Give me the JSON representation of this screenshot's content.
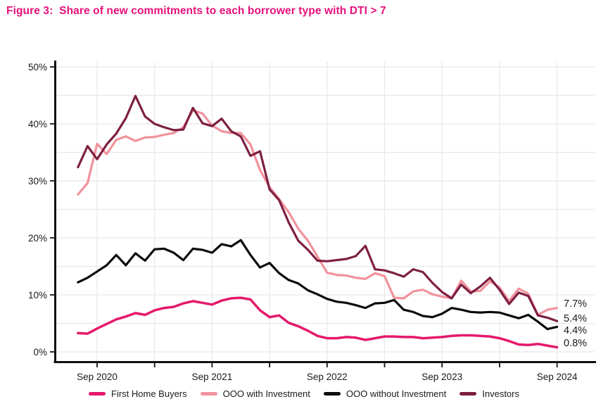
{
  "title": "Figure 3:  Share of new commitments to each borrower type with DTI > 7",
  "title_color": "#E5117C",
  "chart_data": {
    "type": "line",
    "frequency": "monthly",
    "x_start": "2020-07",
    "x_end": "2024-09",
    "x_tick_labels": [
      "Sep 2020",
      "Sep 2021",
      "Sep 2022",
      "Sep 2023",
      "Sep 2024"
    ],
    "x_major_tick_month_indices": [
      2,
      14,
      26,
      38,
      50
    ],
    "x_minor_tick_month_indices": [
      8,
      20,
      32,
      44
    ],
    "ylim": [
      0,
      50
    ],
    "y_tick_labels": [
      "0%",
      "10%",
      "20%",
      "30%",
      "40%",
      "50%"
    ],
    "y_tick_values": [
      0,
      10,
      20,
      30,
      40,
      50
    ],
    "y_grid_step": 5,
    "grid": "on",
    "legend_position": "bottom",
    "series": [
      {
        "name": "First Home Buyers",
        "color": "#E5186C",
        "end_label": "0.8%",
        "label_dy": -1.5,
        "values": [
          3.3,
          3.2,
          4.1,
          4.9,
          5.7,
          6.2,
          6.8,
          6.5,
          7.3,
          7.7,
          7.9,
          8.5,
          8.9,
          8.6,
          8.3,
          9.0,
          9.4,
          9.5,
          9.2,
          7.3,
          6.1,
          6.4,
          5.1,
          4.5,
          3.7,
          2.8,
          2.4,
          2.4,
          2.6,
          2.5,
          2.1,
          2.4,
          2.7,
          2.7,
          2.6,
          2.6,
          2.4,
          2.5,
          2.6,
          2.8,
          2.9,
          2.9,
          2.8,
          2.7,
          2.4,
          1.9,
          1.3,
          1.2,
          1.4,
          1.1,
          0.8
        ]
      },
      {
        "name": "OOO with Investment",
        "color": "#F2929C",
        "end_label": "7.7%",
        "label_dy": -1.6,
        "values": [
          27.6,
          29.6,
          36.5,
          34.7,
          37.2,
          37.8,
          37.0,
          37.6,
          37.7,
          38.1,
          38.4,
          39.4,
          42.4,
          41.8,
          39.7,
          38.7,
          38.4,
          38.4,
          36.4,
          31.9,
          28.9,
          26.8,
          24.5,
          21.6,
          19.5,
          16.7,
          13.9,
          13.5,
          13.4,
          13.0,
          12.8,
          13.8,
          13.3,
          9.5,
          9.4,
          10.6,
          10.9,
          10.1,
          9.7,
          9.4,
          12.5,
          10.6,
          10.7,
          12.4,
          11.3,
          8.9,
          11.1,
          10.2,
          6.5,
          7.4,
          7.7
        ]
      },
      {
        "name": "OOO without Investment",
        "color": "#0b0b0b",
        "end_label": "4.4%",
        "label_dy": 9.6,
        "values": [
          12.2,
          13.0,
          14.1,
          15.2,
          17.0,
          15.2,
          17.3,
          16.0,
          18.0,
          18.1,
          17.4,
          16.1,
          18.1,
          17.9,
          17.4,
          18.9,
          18.5,
          19.6,
          17.0,
          14.8,
          15.6,
          13.8,
          12.6,
          12.0,
          10.8,
          10.1,
          9.3,
          8.8,
          8.6,
          8.2,
          7.7,
          8.5,
          8.6,
          9.1,
          7.4,
          7.0,
          6.3,
          6.1,
          6.7,
          7.7,
          7.4,
          7.0,
          6.9,
          7.0,
          6.9,
          6.4,
          5.9,
          6.5,
          5.3,
          4.0,
          4.4
        ]
      },
      {
        "name": "Investors",
        "color": "#7D1F42",
        "end_label": "5.4%",
        "label_dy": 0.7,
        "values": [
          32.4,
          36.1,
          33.8,
          36.4,
          38.3,
          41.0,
          44.9,
          41.3,
          40.0,
          39.4,
          38.9,
          39.0,
          42.8,
          40.1,
          39.6,
          40.9,
          38.7,
          37.8,
          34.4,
          35.2,
          28.5,
          26.6,
          22.7,
          19.5,
          17.9,
          16.0,
          15.9,
          16.1,
          16.3,
          16.8,
          18.6,
          14.5,
          14.3,
          13.8,
          13.2,
          14.5,
          14.0,
          12.1,
          10.5,
          9.4,
          11.8,
          10.3,
          11.5,
          13.0,
          10.9,
          8.4,
          10.4,
          9.8,
          6.4,
          6.0,
          5.4
        ]
      }
    ]
  },
  "legend": {
    "items": [
      {
        "label": "First Home Buyers",
        "color": "#E5186C"
      },
      {
        "label": "OOO with Investment",
        "color": "#F2929C"
      },
      {
        "label": "OOO without Investment",
        "color": "#0b0b0b"
      },
      {
        "label": "Investors",
        "color": "#7D1F42"
      }
    ]
  }
}
